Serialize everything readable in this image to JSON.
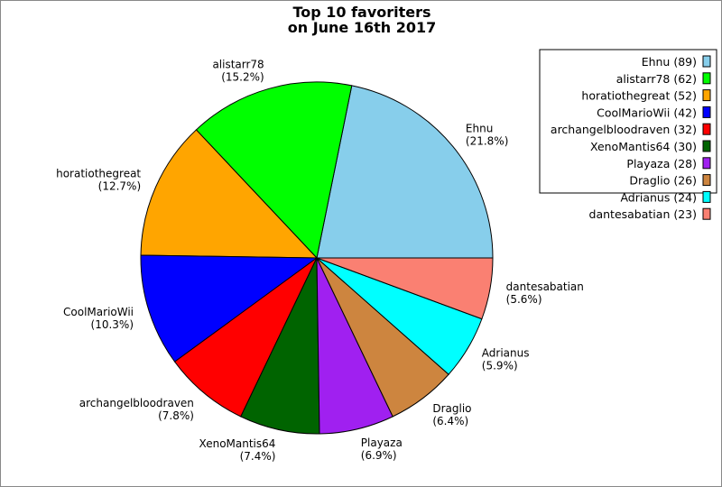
{
  "chart_data": {
    "type": "pie",
    "title": [
      "Top 10 favoriters",
      "on June 16th 2017"
    ],
    "legend_placement": "top-right",
    "start_angle_deg": 0,
    "direction": "counterclockwise",
    "slices": [
      {
        "label": "Ehnu",
        "value": 89,
        "percent": "21.8%",
        "color": "#87ceeb"
      },
      {
        "label": "alistarr78",
        "value": 62,
        "percent": "15.2%",
        "color": "#00ff00"
      },
      {
        "label": "horatiothegreat",
        "value": 52,
        "percent": "12.7%",
        "color": "#ffa500"
      },
      {
        "label": "CoolMarioWii",
        "value": 42,
        "percent": "10.3%",
        "color": "#0000ff"
      },
      {
        "label": "archangelbloodraven",
        "value": 32,
        "percent": "7.8%",
        "color": "#ff0000"
      },
      {
        "label": "XenoMantis64",
        "value": 30,
        "percent": "7.4%",
        "color": "#006400"
      },
      {
        "label": "Playaza",
        "value": 28,
        "percent": "6.9%",
        "color": "#a020f0"
      },
      {
        "label": "Draglio",
        "value": 26,
        "percent": "6.4%",
        "color": "#cd853f"
      },
      {
        "label": "Adrianus",
        "value": 24,
        "percent": "5.9%",
        "color": "#00ffff"
      },
      {
        "label": "dantesabatian",
        "value": 23,
        "percent": "5.6%",
        "color": "#fa8072"
      }
    ]
  }
}
